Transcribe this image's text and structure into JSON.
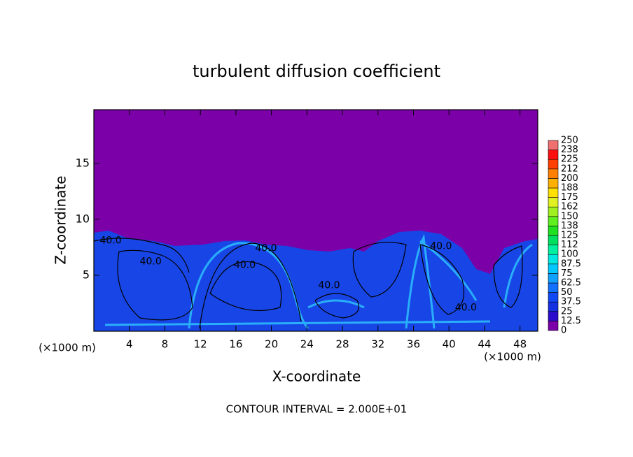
{
  "chart_data": {
    "type": "contour",
    "title": "turbulent diffusion coefficient",
    "x_label": "X-coordinate",
    "y_label": "Z-coordinate",
    "x_unit": "(×1000 m)",
    "y_unit": "(×1000 m)",
    "footnote": "CONTOUR INTERVAL = 2.000E+01",
    "xlim": [
      0,
      50
    ],
    "xticks": [
      4,
      8,
      12,
      16,
      20,
      24,
      28,
      32,
      36,
      40,
      44,
      48
    ],
    "ylim": [
      0,
      19.8
    ],
    "yticks": [
      5,
      10,
      15
    ],
    "colorbar_levels": [
      0,
      12.5,
      25,
      37.5,
      50,
      62.5,
      75,
      87.5,
      100,
      112,
      125,
      138,
      150,
      162,
      175,
      188,
      200,
      212,
      225,
      238,
      250
    ],
    "colorbar_colors": [
      "#7b00a8",
      "#2c0ccc",
      "#1430e0",
      "#1048f4",
      "#1070ff",
      "#10a0ff",
      "#00c8ff",
      "#00e8e0",
      "#00f0a0",
      "#00e060",
      "#20e020",
      "#60f020",
      "#a0f020",
      "#e0f020",
      "#ffe000",
      "#ffb000",
      "#ff8000",
      "#ff4000",
      "#ff1010",
      "#f07070"
    ],
    "contour_labels": [
      {
        "label": "40.0",
        "x": 1.9,
        "y": 8.1
      },
      {
        "label": "40.0",
        "x": 6.4,
        "y": 6.2
      },
      {
        "label": "40.0",
        "x": 17.0,
        "y": 5.9
      },
      {
        "label": "40.0",
        "x": 19.4,
        "y": 7.4
      },
      {
        "label": "40.0",
        "x": 26.5,
        "y": 4.1
      },
      {
        "label": "40.0",
        "x": 39.1,
        "y": 7.6
      },
      {
        "label": "40.0",
        "x": 41.9,
        "y": 2.1
      }
    ]
  }
}
